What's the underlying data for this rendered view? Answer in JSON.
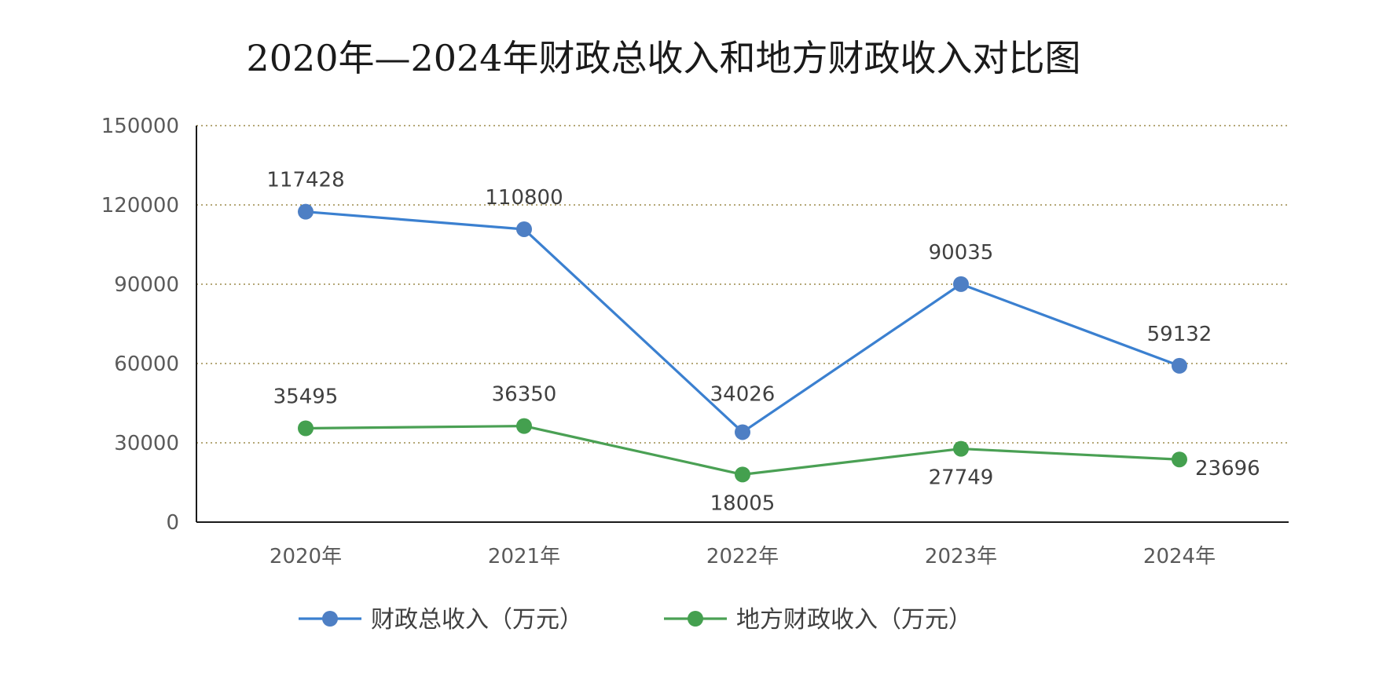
{
  "chart_data": {
    "type": "line",
    "title": "2020年—2024年财政总收入和地方财政收入对比图",
    "categories": [
      "2020年",
      "2021年",
      "2022年",
      "2023年",
      "2024年"
    ],
    "series": [
      {
        "name": "财政总收入（万元）",
        "values": [
          117428,
          110800,
          34026,
          90035,
          59132
        ],
        "color": "#3b80d0",
        "marker_color": "#4e7fc4"
      },
      {
        "name": "地方财政收入（万元）",
        "values": [
          35495,
          36350,
          18005,
          27749,
          23696
        ],
        "color": "#4aa054",
        "marker_color": "#44a04f"
      }
    ],
    "ylim": [
      0,
      150000
    ],
    "yticks": [
      0,
      30000,
      60000,
      90000,
      120000,
      150000
    ],
    "ytick_labels": [
      "0",
      "30000",
      "60000",
      "90000",
      "120000",
      "150000"
    ],
    "grid": "horizontal dotted",
    "grid_color": "#9b8a4a",
    "legend": "bottom",
    "xlabel": "",
    "ylabel": ""
  }
}
